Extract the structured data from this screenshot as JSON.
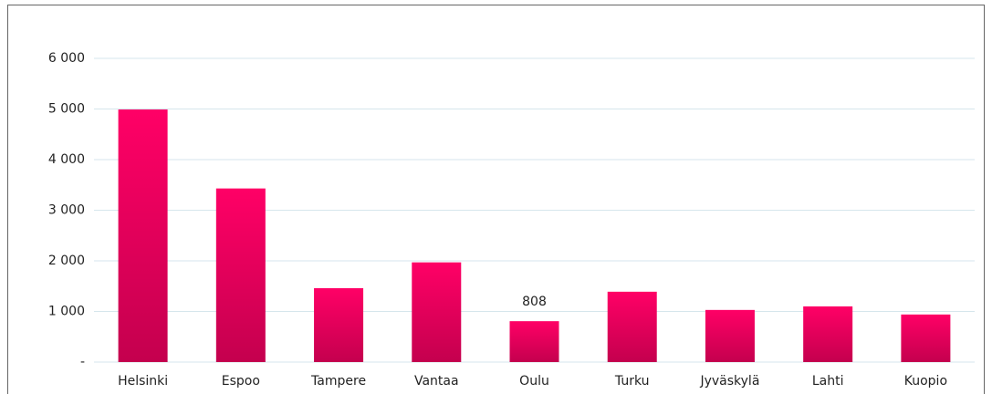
{
  "chart_data": {
    "type": "bar",
    "categories": [
      "Helsinki",
      "Espoo",
      "Tampere",
      "Vantaa",
      "Oulu",
      "Turku",
      "Jyväskylä",
      "Lahti",
      "Kuopio"
    ],
    "values": [
      4990,
      3430,
      1460,
      1970,
      808,
      1390,
      1030,
      1100,
      940
    ],
    "value_labels": [
      null,
      null,
      null,
      null,
      "808",
      null,
      null,
      null,
      null
    ],
    "color": "#ff0066",
    "ylim": [
      0,
      6000
    ],
    "yticks": [
      {
        "value": 0,
        "label": "-"
      },
      {
        "value": 1000,
        "label": "1 000"
      },
      {
        "value": 2000,
        "label": "2 000"
      },
      {
        "value": 3000,
        "label": "3 000"
      },
      {
        "value": 4000,
        "label": "4 000"
      },
      {
        "value": 5000,
        "label": "5 000"
      },
      {
        "value": 6000,
        "label": "6 000"
      }
    ],
    "grid": true
  }
}
